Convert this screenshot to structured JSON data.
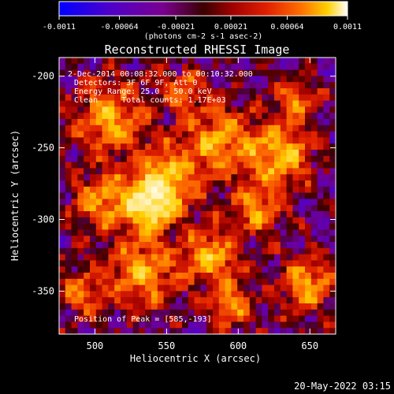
{
  "colorbar": {
    "ticks": [
      "-0.0011",
      "-0.00064",
      "-0.00021",
      "0.00021",
      "0.00064",
      "0.0011"
    ],
    "tick_values": [
      -0.0011,
      -0.00064,
      -0.00021,
      0.00021,
      0.00064,
      0.0011
    ],
    "range": [
      -0.0011,
      0.0011
    ],
    "unit_label": "(photons cm-2 s-1 asec-2)",
    "colors": [
      "#0000ff",
      "#5000c8",
      "#7a0090",
      "#3a0000",
      "#a00000",
      "#e02000",
      "#ff7000",
      "#ffd000",
      "#ffffff"
    ]
  },
  "chart_data": {
    "type": "heatmap",
    "title": "Reconstructed RHESSI Image",
    "xlabel": "Heliocentric X (arcsec)",
    "ylabel": "Heliocentric Y (arcsec)",
    "xlim": [
      475,
      668
    ],
    "ylim": [
      -380,
      -187
    ],
    "x_ticks": [
      500,
      550,
      600,
      650
    ],
    "y_ticks": [
      -200,
      -250,
      -300,
      -350
    ],
    "x_tick_labels": [
      "500",
      "550",
      "600",
      "650"
    ],
    "y_tick_labels": [
      "-200",
      "-250",
      "-300",
      "-350"
    ],
    "annotations": [
      "2-Dec-2014 00:08:32.000 to 00:10:32.000",
      "Detectors: 3F 6F 9F, Att 0",
      "Energy Range: 25.0 - 50.0 keV",
      "Clean     Total counts: 1.17E+03"
    ],
    "peak_label": "Position of Peak = [585,-193]",
    "peak": [
      585,
      -193
    ],
    "colormap": "rhessi-blue-purple-red-yellow-white"
  },
  "timestamp": "20-May-2022 03:15"
}
